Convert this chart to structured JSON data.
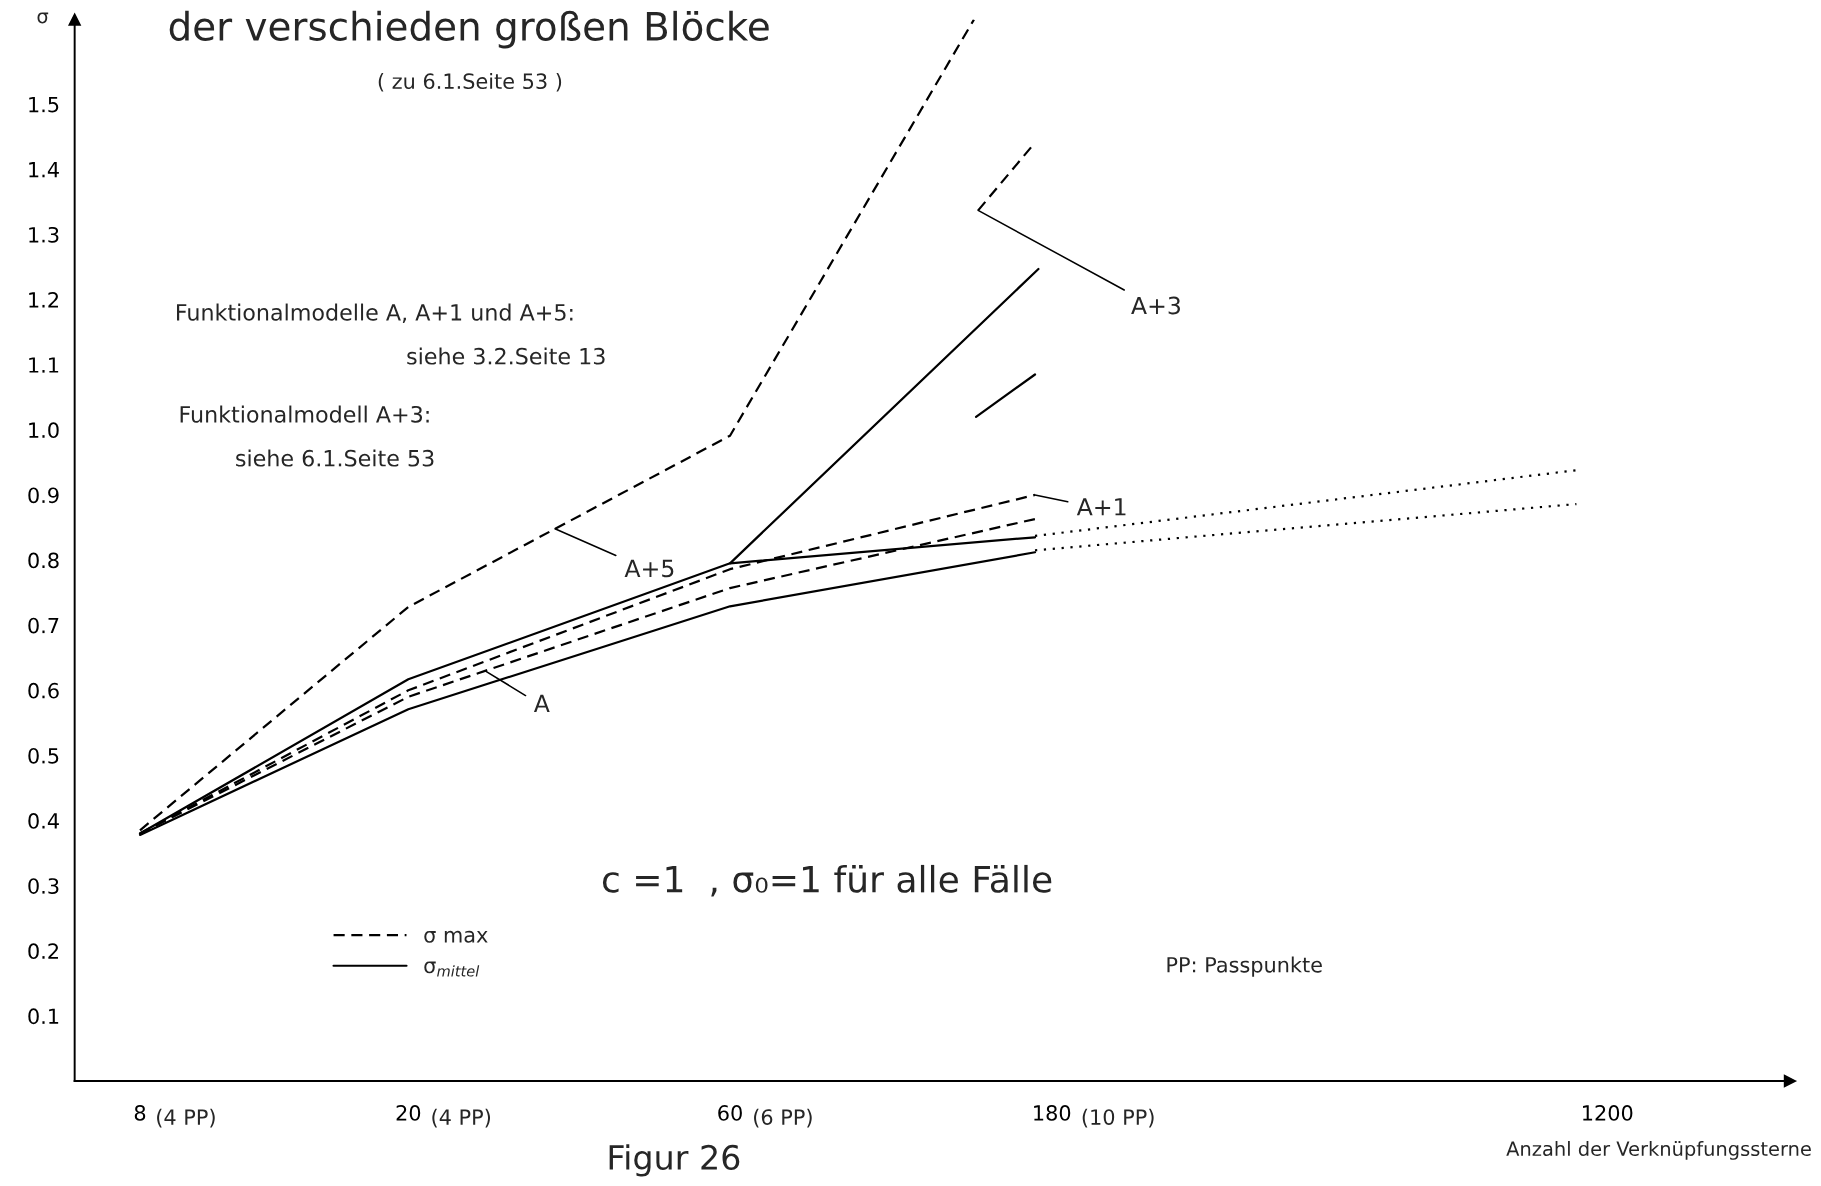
{
  "chart_data": {
    "type": "line",
    "title": "der verschieden großen Blöcke",
    "subtitle": "( zu 6.1.Seite 53 )",
    "xlabel": "Anzahl der Verknüpfungssterne",
    "ylabel": "σ",
    "log": "x",
    "xlim": [
      6.4,
      2240
    ],
    "ylim": [
      0,
      1.63
    ],
    "xticks": [
      8,
      20,
      60,
      180,
      1200
    ],
    "yticks": [
      0.1,
      0.2,
      0.3,
      0.4,
      0.5,
      0.6,
      0.7,
      0.8,
      0.9,
      {
        "value": 1.0,
        "label": "1.0"
      },
      1.1,
      1.2,
      1.3,
      1.4,
      1.5
    ],
    "grid": false,
    "legend": "bottom left",
    "series": [
      {
        "name": "σ max",
        "color": "#000000",
        "line_style": "dashed",
        "x": [
          8,
          20,
          60,
          138
        ],
        "values": [
          0.385,
          0.728,
          0.991,
          1.63
        ]
      },
      {
        "name": "σ$_{mittel}$",
        "color": "#000000",
        "line_style": "solid",
        "x": [
          8,
          20,
          60,
          172
        ],
        "values": [
          0.38,
          0.617,
          0.795,
          1.247
        ]
      },
      {
        "color": "#000000",
        "line_style": "dashed",
        "x": [
          8,
          20,
          60,
          170
        ],
        "values": [
          0.38,
          0.6,
          0.786,
          0.9
        ]
      },
      {
        "color": "#000000",
        "line_style": "solid",
        "x": [
          60,
          170
        ],
        "values": [
          0.795,
          0.835
        ]
      },
      {
        "color": "#000000",
        "line_style": "dashed",
        "x": [
          8,
          20,
          60,
          170
        ],
        "values": [
          0.38,
          0.59,
          0.757,
          0.863
        ]
      },
      {
        "color": "#000000",
        "line_style": "solid",
        "x": [
          8,
          20,
          60,
          170
        ],
        "values": [
          0.378,
          0.571,
          0.729,
          0.812
        ]
      },
      {
        "color": "#000000",
        "line_style": "dashed",
        "x": [
          140,
          170
        ],
        "values": [
          1.337,
          1.441
        ]
      },
      {
        "color": "#000000",
        "line_style": "solid",
        "x": [
          139,
          170
        ],
        "values": [
          1.02,
          1.085
        ]
      },
      {
        "color": "#000000",
        "line_style": "dotted",
        "x": [
          170,
          1080
        ],
        "values": [
          0.837,
          0.938
        ]
      },
      {
        "color": "#000000",
        "line_style": "dotted",
        "x": [
          170,
          1080
        ],
        "values": [
          0.815,
          0.886
        ]
      }
    ],
    "annotations": [
      "Funktionalmodelle A, A+1 und A+5:",
      "siehe 3.2.Seite 13",
      "Funktionalmodell A+3:",
      "siehe 6.1.Seite 53",
      "c =1  , σ₀=1 für alle Fälle",
      "PP: Passpunkte",
      "Figur 26",
      "(4 PP)",
      "(4 PP)",
      "(6 PP)",
      "(10 PP)",
      {
        "text": "A+5",
        "x": 33,
        "y": 0.848
      },
      {
        "text": "A",
        "x": 26,
        "y": 0.63
      },
      {
        "text": "A+1",
        "x": 170,
        "y": 0.9
      },
      {
        "text": "A+3",
        "x": 140,
        "y": 1.337
      }
    ]
  }
}
